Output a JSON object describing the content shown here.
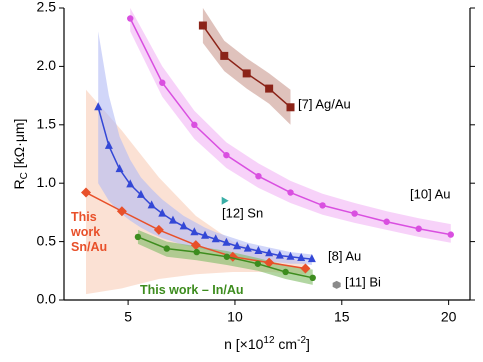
{
  "chart_data": {
    "type": "line",
    "ylabel": {
      "main": "R",
      "sub": "C",
      "rest": " [kΩ·μm]"
    },
    "xlabel": {
      "main": "n [×10",
      "sup": "12",
      "mid": " cm",
      "sup2": "-2",
      "end": "]"
    },
    "xlim": [
      2,
      21
    ],
    "xticks": [
      5,
      10,
      15,
      20
    ],
    "ylim": [
      0,
      2.5
    ],
    "yticks": [
      {
        "value": 0,
        "label": "0.0"
      },
      {
        "value": 0.5,
        "label": "0.5"
      },
      {
        "value": 1,
        "label": "1.0"
      },
      {
        "value": 1.5,
        "label": "1.5"
      },
      {
        "value": 2,
        "label": "2.0"
      },
      {
        "value": 2.5,
        "label": "2.5"
      }
    ],
    "series": [
      {
        "name": "[10] Au",
        "color": "#d94fe0",
        "band_color": "#f1b4f5",
        "marker": "circle",
        "x": [
          5.1,
          6.6,
          8.1,
          9.6,
          11.1,
          12.6,
          14.1,
          15.6,
          17.1,
          18.6,
          20.1
        ],
        "values": [
          2.41,
          1.86,
          1.5,
          1.24,
          1.06,
          0.92,
          0.81,
          0.74,
          0.67,
          0.61,
          0.56
        ],
        "band_high": [
          2.5,
          2.0,
          1.62,
          1.35,
          1.17,
          1.02,
          0.91,
          0.83,
          0.76,
          0.7,
          0.65
        ],
        "band_low": [
          2.3,
          1.74,
          1.38,
          1.13,
          0.96,
          0.83,
          0.73,
          0.66,
          0.6,
          0.54,
          0.49
        ]
      },
      {
        "name": "[7] Ag/Au",
        "color": "#8b2318",
        "band_color": "#c99a90",
        "marker": "square",
        "x": [
          8.5,
          9.5,
          10.55,
          11.6,
          12.6
        ],
        "values": [
          2.35,
          2.09,
          1.94,
          1.81,
          1.65
        ],
        "band_high": [
          2.5,
          2.22,
          2.07,
          1.94,
          1.8
        ],
        "band_low": [
          2.2,
          1.96,
          1.81,
          1.68,
          1.5
        ]
      },
      {
        "name": "This work Sn/Au",
        "color": "#e8502a",
        "band_color": "#f8cdb8",
        "marker": "diamond",
        "x": [
          3.03,
          4.71,
          6.44,
          8.17,
          9.9,
          11.6,
          13.3
        ],
        "values": [
          0.92,
          0.76,
          0.6,
          0.47,
          0.37,
          0.32,
          0.27
        ],
        "band_high": [
          1.8,
          1.45,
          1.05,
          0.72,
          0.5,
          0.4,
          0.33
        ],
        "band_low": [
          0.05,
          0.1,
          0.18,
          0.22,
          0.24,
          0.24,
          0.22
        ]
      },
      {
        "name": "[8] Au",
        "color": "#3347d6",
        "band_color": "#b2baf5",
        "marker": "triangle",
        "x": [
          3.6,
          4.1,
          4.6,
          5.1,
          5.6,
          6.1,
          6.6,
          7.1,
          7.6,
          8.1,
          8.6,
          9.1,
          9.6,
          10.1,
          10.6,
          11.1,
          11.6,
          12.1,
          12.6,
          13.1,
          13.6
        ],
        "values": [
          1.65,
          1.32,
          1.12,
          0.99,
          0.9,
          0.81,
          0.74,
          0.68,
          0.63,
          0.58,
          0.55,
          0.52,
          0.49,
          0.46,
          0.44,
          0.42,
          0.4,
          0.38,
          0.37,
          0.36,
          0.35
        ],
        "band_high": [
          2.3,
          1.75,
          1.4,
          1.2,
          1.05,
          0.95,
          0.86,
          0.79,
          0.72,
          0.67,
          0.62,
          0.58,
          0.55,
          0.52,
          0.49,
          0.47,
          0.45,
          0.43,
          0.41,
          0.4,
          0.39
        ],
        "band_low": [
          1.0,
          0.85,
          0.75,
          0.68,
          0.62,
          0.57,
          0.53,
          0.5,
          0.47,
          0.45,
          0.43,
          0.41,
          0.39,
          0.37,
          0.36,
          0.34,
          0.33,
          0.32,
          0.31,
          0.31,
          0.3
        ]
      },
      {
        "name": "This work – In/Au",
        "color": "#3d8c1e",
        "band_color": "#7fbb64",
        "marker": "circle",
        "x": [
          5.46,
          6.81,
          8.21,
          9.62,
          11.07,
          12.37,
          13.64
        ],
        "values": [
          0.54,
          0.44,
          0.41,
          0.37,
          0.31,
          0.24,
          0.19
        ],
        "band_high": [
          0.6,
          0.5,
          0.46,
          0.42,
          0.36,
          0.3,
          0.26
        ],
        "band_low": [
          0.48,
          0.37,
          0.34,
          0.3,
          0.25,
          0.18,
          0.13
        ]
      },
      {
        "name": "[12] Sn",
        "color": "#3aaea6",
        "marker": "right-triangle",
        "x": [
          9.52
        ],
        "values": [
          0.85
        ]
      },
      {
        "name": "[11] Bi",
        "color": "#8a8a8a",
        "marker": "star",
        "x": [
          14.76
        ],
        "values": [
          0.13
        ]
      }
    ]
  }
}
